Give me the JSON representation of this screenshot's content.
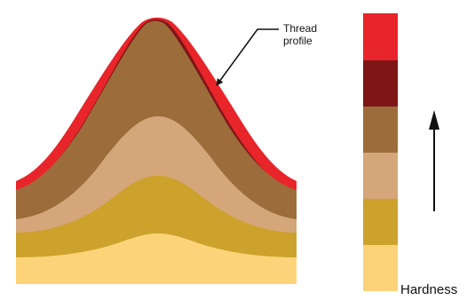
{
  "annotation": {
    "line1": "Thread",
    "line2": "profile"
  },
  "hardness_label": "Hardness",
  "colors": {
    "outer_case": "#e8252a",
    "dark_band": "#7e1616",
    "mid_brown": "#9c6c3a",
    "light_tan": "#d4a679",
    "mustard": "#cca22c",
    "core": "#fdd37a"
  },
  "scale": {
    "direction": "increasing-upward",
    "levels_from_top": [
      "outer_case",
      "dark_band",
      "mid_brown",
      "light_tan",
      "mustard",
      "core"
    ]
  },
  "icons": {
    "pointer": "arrow-icon",
    "hardness_direction": "up-arrow-icon"
  }
}
